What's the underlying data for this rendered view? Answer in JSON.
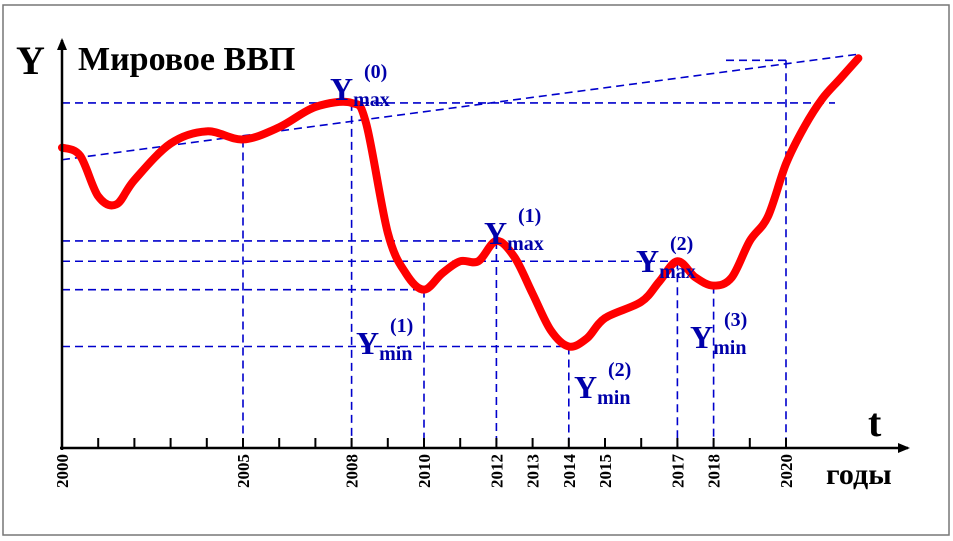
{
  "axes": {
    "y_symbol": "Y",
    "y_title": "Мировое ВВП",
    "t_symbol": "t",
    "x_unit": "годы"
  },
  "chart_data": {
    "type": "line",
    "title": "Мировое ВВП",
    "xlabel": "годы",
    "ylabel": "Y",
    "x_tick_labels": [
      "2000",
      "2005",
      "2008",
      "2010",
      "2012",
      "2013",
      "2014",
      "2015",
      "2017",
      "2018",
      "2020"
    ],
    "xlim": [
      2000,
      2022.5
    ],
    "ylim": [
      0,
      100
    ],
    "series": [
      {
        "points": [
          [
            2000.0,
            74
          ],
          [
            2000.5,
            72
          ],
          [
            2001.0,
            62
          ],
          [
            2001.5,
            60
          ],
          [
            2002.0,
            66
          ],
          [
            2003.0,
            75
          ],
          [
            2004.0,
            78
          ],
          [
            2005.0,
            76
          ],
          [
            2006.0,
            79
          ],
          [
            2007.0,
            84
          ],
          [
            2008.0,
            85
          ],
          [
            2008.4,
            80
          ],
          [
            2009.0,
            53
          ],
          [
            2009.5,
            43
          ],
          [
            2010.0,
            39
          ],
          [
            2010.5,
            43
          ],
          [
            2011.0,
            46
          ],
          [
            2011.5,
            46
          ],
          [
            2012.0,
            51
          ],
          [
            2012.5,
            47
          ],
          [
            2013.0,
            38
          ],
          [
            2013.5,
            29
          ],
          [
            2014.0,
            25
          ],
          [
            2014.5,
            27
          ],
          [
            2015.0,
            32
          ],
          [
            2016.0,
            36
          ],
          [
            2016.5,
            41
          ],
          [
            2017.0,
            46
          ],
          [
            2017.5,
            42
          ],
          [
            2018.0,
            40
          ],
          [
            2018.5,
            42
          ],
          [
            2019.0,
            51
          ],
          [
            2019.5,
            57
          ],
          [
            2020.0,
            70
          ],
          [
            2020.5,
            79
          ],
          [
            2021.0,
            86
          ],
          [
            2021.5,
            91
          ],
          [
            2022.0,
            96
          ]
        ],
        "color": "#ff0000"
      }
    ],
    "trend_line": [
      [
        2000.0,
        71
      ],
      [
        2022.0,
        97
      ]
    ],
    "annotations": [
      {
        "main": "Y",
        "sub": "max",
        "sup": "(0)"
      },
      {
        "main": "Y",
        "sub": "max",
        "sup": "(1)"
      },
      {
        "main": "Y",
        "sub": "max",
        "sup": "(2)"
      },
      {
        "main": "Y",
        "sub": "min",
        "sup": "(1)"
      },
      {
        "main": "Y",
        "sub": "min",
        "sup": "(2)"
      },
      {
        "main": "Y",
        "sub": "min",
        "sup": "(3)"
      }
    ],
    "guide_lines": {
      "vertical_years": [
        2005,
        2008,
        2010,
        2012,
        2014,
        2017,
        2018,
        2020
      ],
      "horizontal_levels": [
        85,
        51,
        46,
        39,
        25
      ]
    },
    "grid": false,
    "colors": {
      "curve": "#ff0000",
      "guides": "#0000cc",
      "axes": "#000000",
      "labels": "#0000aa"
    }
  }
}
